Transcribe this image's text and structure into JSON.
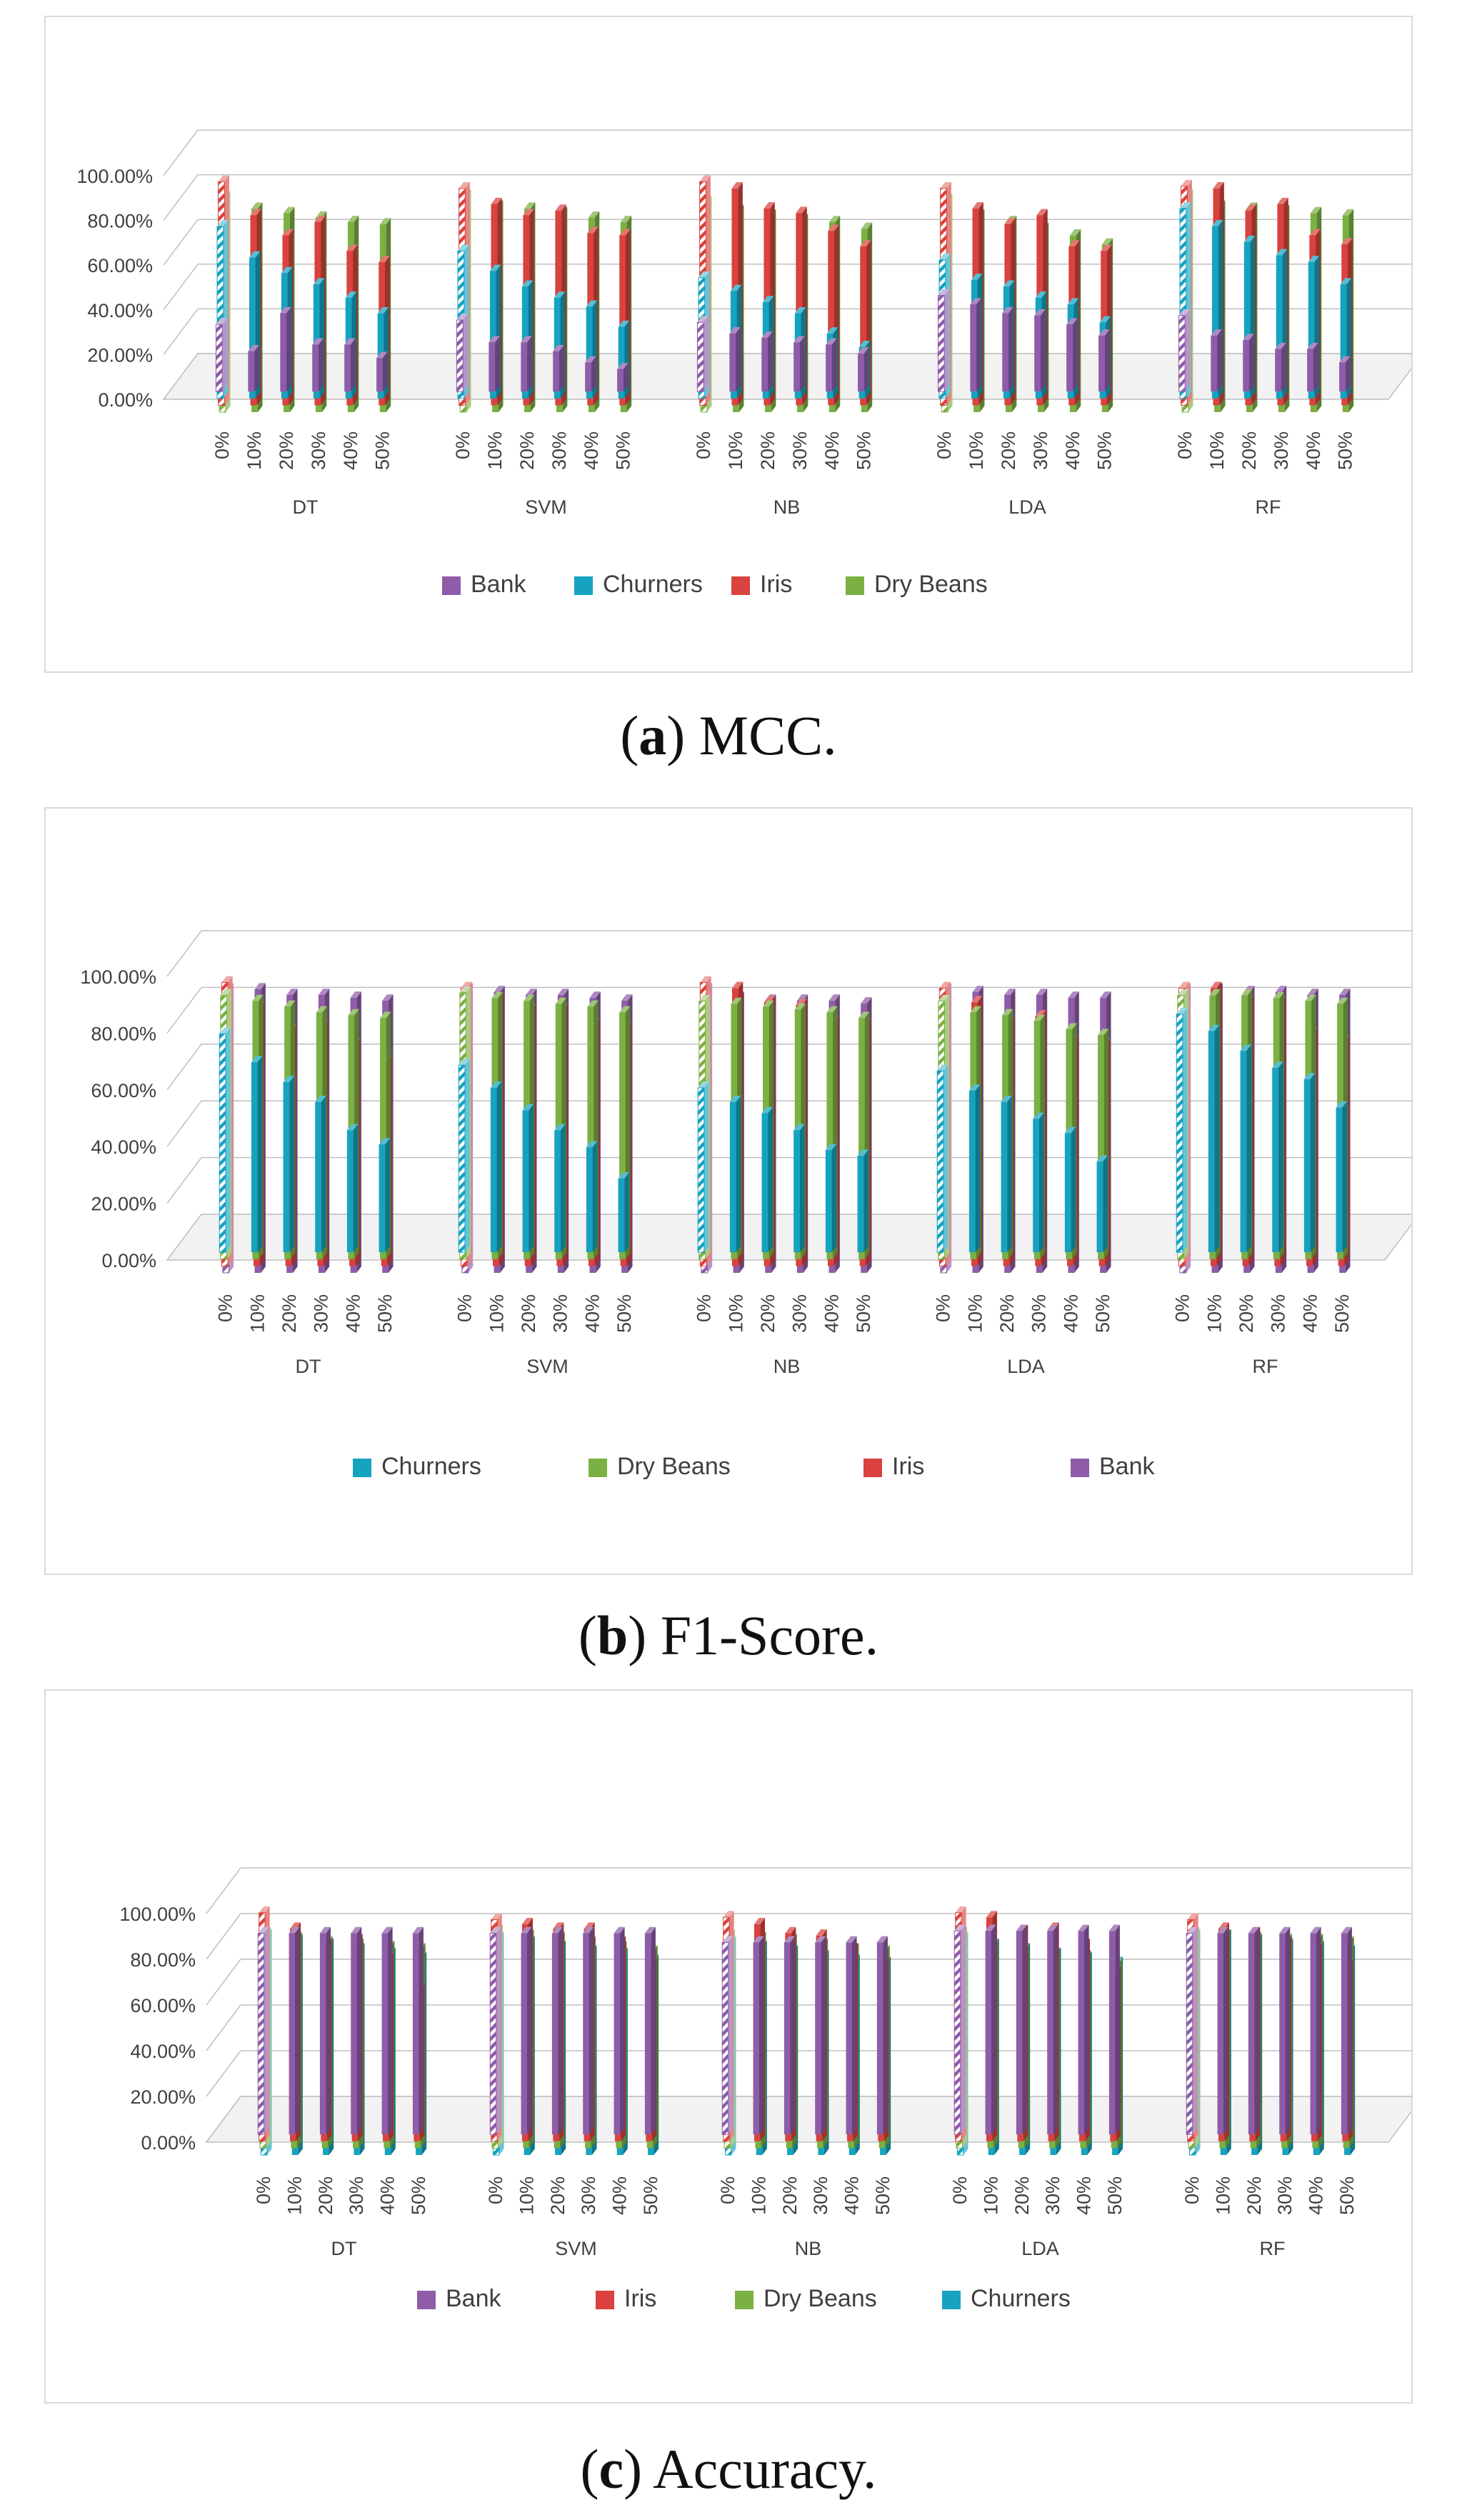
{
  "colors": {
    "Bank": "#8e5ca8",
    "Churners": "#15a3c0",
    "Iris": "#d9423e",
    "Dry Beans": "#7bb042",
    "axis": "#bfbfbf",
    "text": "#404040"
  },
  "captions": [
    {
      "letter": "a",
      "text": " MCC."
    },
    {
      "letter": "b",
      "text": " F1-Score."
    },
    {
      "letter": "c",
      "text": " Accuracy."
    }
  ],
  "chart_data": [
    {
      "id": "mcc",
      "type": "bar",
      "title": "",
      "groups": [
        "DT",
        "SVM",
        "NB",
        "LDA",
        "RF"
      ],
      "categories": [
        "0%",
        "10%",
        "20%",
        "30%",
        "40%",
        "50%"
      ],
      "ylim": [
        0,
        1
      ],
      "y_ticks": [
        "0.00%",
        "20.00%",
        "40.00%",
        "60.00%",
        "80.00%",
        "100.00%"
      ],
      "legend": [
        "Bank",
        "Churners",
        "Iris",
        "Dry Beans"
      ],
      "series": [
        {
          "name": "Bank",
          "values": [
            [
              0.3,
              0.18,
              0.35,
              0.21,
              0.21,
              0.15
            ],
            [
              0.32,
              0.22,
              0.22,
              0.18,
              0.13,
              0.1
            ],
            [
              0.31,
              0.26,
              0.24,
              0.22,
              0.21,
              0.17
            ],
            [
              0.43,
              0.39,
              0.35,
              0.34,
              0.3,
              0.25
            ],
            [
              0.34,
              0.25,
              0.23,
              0.19,
              0.19,
              0.13
            ]
          ]
        },
        {
          "name": "Churners",
          "values": [
            [
              0.77,
              0.63,
              0.56,
              0.51,
              0.45,
              0.38
            ],
            [
              0.66,
              0.57,
              0.5,
              0.45,
              0.41,
              0.32
            ],
            [
              0.54,
              0.48,
              0.43,
              0.38,
              0.29,
              0.23
            ],
            [
              0.62,
              0.53,
              0.5,
              0.45,
              0.42,
              0.34
            ],
            [
              0.85,
              0.77,
              0.7,
              0.64,
              0.61,
              0.51
            ]
          ]
        },
        {
          "name": "Iris",
          "values": [
            [
              1.0,
              0.85,
              0.76,
              0.82,
              0.69,
              0.64
            ],
            [
              0.97,
              0.9,
              0.85,
              0.87,
              0.77,
              0.76
            ],
            [
              1.0,
              0.97,
              0.88,
              0.86,
              0.78,
              0.71
            ],
            [
              0.97,
              0.88,
              0.81,
              0.85,
              0.71,
              0.69
            ],
            [
              0.98,
              0.97,
              0.87,
              0.9,
              0.76,
              0.72
            ]
          ]
        },
        {
          "name": "Dry Beans",
          "values": [
            [
              0.96,
              0.91,
              0.89,
              0.87,
              0.85,
              0.84
            ],
            [
              0.97,
              0.92,
              0.91,
              0.89,
              0.87,
              0.85
            ],
            [
              0.94,
              0.9,
              0.88,
              0.86,
              0.85,
              0.82
            ],
            [
              0.95,
              0.88,
              0.85,
              0.82,
              0.79,
              0.75
            ],
            [
              0.97,
              0.92,
              0.91,
              0.9,
              0.89,
              0.88
            ]
          ]
        }
      ]
    },
    {
      "id": "f1",
      "type": "bar",
      "title": "",
      "groups": [
        "DT",
        "SVM",
        "NB",
        "LDA",
        "RF"
      ],
      "categories": [
        "0%",
        "10%",
        "20%",
        "30%",
        "40%",
        "50%"
      ],
      "ylim": [
        0,
        1
      ],
      "y_ticks": [
        "0.00%",
        "20.00%",
        "40.00%",
        "60.00%",
        "80.00%",
        "100.00%"
      ],
      "legend": [
        "Churners",
        "Dry Beans",
        "Iris",
        "Bank"
      ],
      "series": [
        {
          "name": "Churners",
          "values": [
            [
              0.77,
              0.67,
              0.6,
              0.53,
              0.43,
              0.38
            ],
            [
              0.66,
              0.58,
              0.5,
              0.43,
              0.37,
              0.26
            ],
            [
              0.58,
              0.53,
              0.49,
              0.43,
              0.36,
              0.34
            ],
            [
              0.64,
              0.57,
              0.53,
              0.47,
              0.42,
              0.32
            ],
            [
              0.84,
              0.78,
              0.71,
              0.65,
              0.61,
              0.51
            ]
          ]
        },
        {
          "name": "Dry Beans",
          "values": [
            [
              0.93,
              0.91,
              0.89,
              0.87,
              0.86,
              0.85
            ],
            [
              0.94,
              0.92,
              0.91,
              0.9,
              0.89,
              0.87
            ],
            [
              0.91,
              0.9,
              0.89,
              0.88,
              0.87,
              0.85
            ],
            [
              0.91,
              0.87,
              0.86,
              0.84,
              0.81,
              0.79
            ],
            [
              0.93,
              0.93,
              0.93,
              0.92,
              0.91,
              0.9
            ]
          ]
        },
        {
          "name": "Iris",
          "values": [
            [
              1.0,
              0.91,
              0.83,
              0.85,
              0.78,
              0.72
            ],
            [
              0.98,
              0.94,
              0.9,
              0.9,
              0.85,
              0.84
            ],
            [
              1.0,
              0.98,
              0.93,
              0.92,
              0.86,
              0.85
            ],
            [
              0.98,
              0.93,
              0.86,
              0.88,
              0.79,
              0.78
            ],
            [
              0.98,
              0.98,
              0.93,
              0.93,
              0.82,
              0.79
            ]
          ]
        },
        {
          "name": "Bank",
          "values": [
            [
              1.0,
              1.0,
              0.98,
              0.98,
              0.97,
              0.96
            ],
            [
              1.0,
              0.99,
              0.98,
              0.98,
              0.97,
              0.96
            ],
            [
              1.0,
              0.97,
              0.96,
              0.96,
              0.96,
              0.95
            ],
            [
              1.0,
              0.99,
              0.98,
              0.98,
              0.97,
              0.97
            ],
            [
              1.0,
              1.0,
              0.99,
              0.99,
              0.98,
              0.98
            ]
          ]
        }
      ]
    },
    {
      "id": "accuracy",
      "type": "bar",
      "title": "",
      "groups": [
        "DT",
        "SVM",
        "NB",
        "LDA",
        "RF"
      ],
      "categories": [
        "0%",
        "10%",
        "20%",
        "30%",
        "40%",
        "50%"
      ],
      "ylim": [
        0,
        1
      ],
      "y_ticks": [
        "0.00%",
        "20.00%",
        "40.00%",
        "60.00%",
        "80.00%",
        "100.00%"
      ],
      "legend": [
        "Bank",
        "Iris",
        "Dry Beans",
        "Churners"
      ],
      "series": [
        {
          "name": "Bank",
          "values": [
            [
              0.88,
              0.88,
              0.88,
              0.88,
              0.88,
              0.88
            ],
            [
              0.88,
              0.88,
              0.88,
              0.88,
              0.88,
              0.88
            ],
            [
              0.84,
              0.84,
              0.84,
              0.84,
              0.84,
              0.84
            ],
            [
              0.89,
              0.89,
              0.89,
              0.89,
              0.89,
              0.89
            ],
            [
              0.88,
              0.88,
              0.88,
              0.88,
              0.88,
              0.88
            ]
          ]
        },
        {
          "name": "Iris",
          "values": [
            [
              1.0,
              0.93,
              0.86,
              0.88,
              0.8,
              0.66
            ],
            [
              0.97,
              0.95,
              0.93,
              0.93,
              0.87,
              0.78
            ],
            [
              0.98,
              0.95,
              0.91,
              0.9,
              0.84,
              0.78
            ],
            [
              1.0,
              0.98,
              0.92,
              0.93,
              0.86,
              0.74
            ],
            [
              0.97,
              0.93,
              0.91,
              0.87,
              0.84,
              0.77
            ]
          ]
        },
        {
          "name": "Dry Beans",
          "values": [
            [
              0.94,
              0.92,
              0.9,
              0.89,
              0.88,
              0.87
            ],
            [
              0.95,
              0.93,
              0.92,
              0.9,
              0.88,
              0.86
            ],
            [
              0.93,
              0.92,
              0.91,
              0.89,
              0.87,
              0.86
            ],
            [
              0.94,
              0.88,
              0.86,
              0.85,
              0.84,
              0.8
            ],
            [
              0.94,
              0.93,
              0.92,
              0.91,
              0.91,
              0.9
            ]
          ]
        },
        {
          "name": "Churners",
          "values": [
            [
              0.96,
              0.94,
              0.92,
              0.9,
              0.88,
              0.86
            ],
            [
              0.95,
              0.93,
              0.91,
              0.89,
              0.88,
              0.85
            ],
            [
              0.93,
              0.91,
              0.89,
              0.87,
              0.85,
              0.84
            ],
            [
              0.95,
              0.92,
              0.9,
              0.88,
              0.86,
              0.84
            ],
            [
              0.96,
              0.96,
              0.94,
              0.92,
              0.91,
              0.89
            ]
          ]
        }
      ]
    }
  ]
}
